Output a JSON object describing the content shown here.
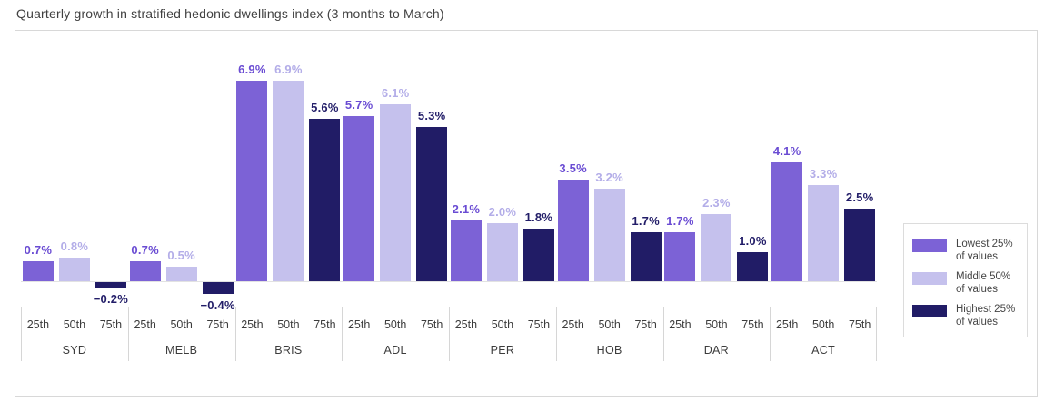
{
  "chart_data": {
    "type": "bar",
    "title": "Quarterly growth in stratified hedonic dwellings index (3 months to March)",
    "categories": [
      "SYD",
      "MELB",
      "BRIS",
      "ADL",
      "PER",
      "HOB",
      "DAR",
      "ACT"
    ],
    "percentile_labels": [
      "25th",
      "50th",
      "75th"
    ],
    "series": [
      {
        "name": "Lowest 25% of values",
        "legend_lines": [
          "Lowest 25%",
          "of values"
        ],
        "percentile": "25th",
        "color": "#7c62d6",
        "label_color": "#6a4cd3",
        "values": [
          0.7,
          0.7,
          6.9,
          5.7,
          2.1,
          3.5,
          1.7,
          4.1
        ]
      },
      {
        "name": "Middle 50% of values",
        "legend_lines": [
          "Middle 50%",
          "of values"
        ],
        "percentile": "50th",
        "color": "#c5c1ed",
        "label_color": "#b3ade8",
        "values": [
          0.8,
          0.5,
          6.9,
          6.1,
          2.0,
          3.2,
          2.3,
          3.3
        ]
      },
      {
        "name": "Highest 25% of values",
        "legend_lines": [
          "Highest 25%",
          "of values"
        ],
        "percentile": "75th",
        "color": "#211c66",
        "label_color": "#221d68",
        "values": [
          -0.2,
          -0.4,
          5.6,
          5.3,
          1.8,
          1.7,
          1.0,
          2.5
        ]
      }
    ],
    "value_suffix": "%",
    "ylim": [
      -0.6,
      7.6
    ],
    "grid": false,
    "legend_position": "right-inside",
    "axis_text_color": "#3c3c3c",
    "border_color": "#d8d8d8"
  }
}
